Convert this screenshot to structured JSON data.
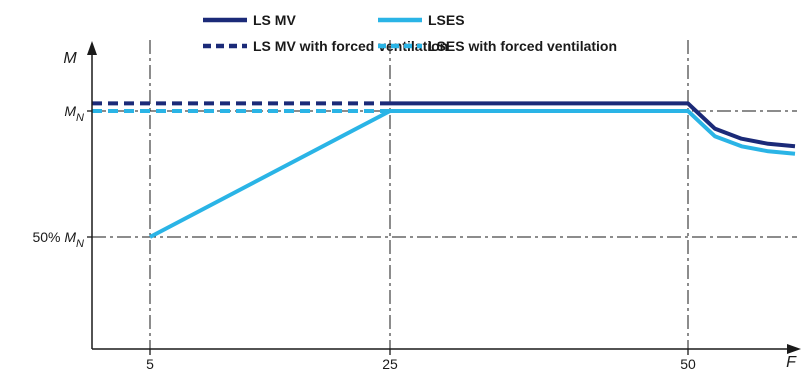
{
  "chart_data": {
    "type": "line",
    "xlabel": "F",
    "ylabel": "M",
    "x_ticks": [
      "5",
      "25",
      "50"
    ],
    "y_ticks": [
      {
        "prefix": "",
        "symbol": "M",
        "sub": "N",
        "value": 1.0
      },
      {
        "prefix": "50% ",
        "symbol": "M",
        "sub": "N",
        "value": 0.5
      }
    ],
    "xlim": [
      0,
      54
    ],
    "ylim": [
      0,
      1.15
    ],
    "grid": "dash-dot reference lines at ticks",
    "legend_position": "top",
    "series": [
      {
        "name": "LS MV",
        "color": "#1b2a78",
        "style": "solid",
        "points": [
          [
            25,
            1.03
          ],
          [
            50,
            1.03
          ],
          [
            50.3,
            1.0
          ],
          [
            51,
            0.93
          ],
          [
            52,
            0.89
          ],
          [
            53,
            0.87
          ],
          [
            54,
            0.86
          ]
        ]
      },
      {
        "name": "LS MV with forced ventilation",
        "color": "#1b2a78",
        "style": "dashed",
        "points": [
          [
            0,
            1.03
          ],
          [
            25,
            1.03
          ]
        ]
      },
      {
        "name": "LSES",
        "color": "#2ab4e6",
        "style": "solid",
        "points": [
          [
            5,
            0.5
          ],
          [
            25,
            1.0
          ],
          [
            50,
            1.0
          ],
          [
            50.3,
            0.97
          ],
          [
            51,
            0.9
          ],
          [
            52,
            0.86
          ],
          [
            53,
            0.84
          ],
          [
            54,
            0.83
          ]
        ]
      },
      {
        "name": "LSES with forced ventilation",
        "color": "#2ab4e6",
        "style": "dashed",
        "points": [
          [
            0,
            1.0
          ],
          [
            25,
            1.0
          ]
        ]
      }
    ]
  }
}
